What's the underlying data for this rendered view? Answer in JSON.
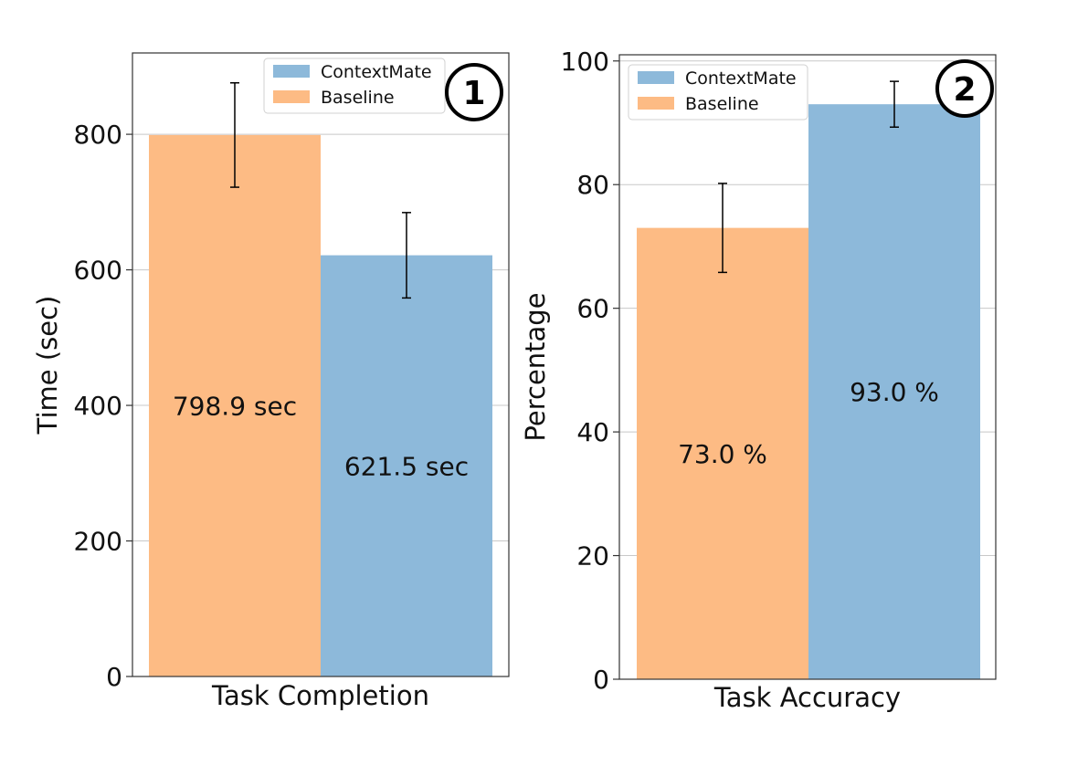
{
  "colors": {
    "contextmate": "#8db9da",
    "baseline": "#fdbb84",
    "grid": "#c8c8c8",
    "axis": "#333333",
    "text": "#111111"
  },
  "chart_data": [
    {
      "type": "bar",
      "panel_badge": "1",
      "xlabel": "Task Completion",
      "ylabel": "Time (sec)",
      "ylim": [
        0,
        920
      ],
      "yticks": [
        0,
        200,
        400,
        600,
        800
      ],
      "grid": true,
      "legend": {
        "position": "top-center",
        "entries": [
          "ContextMate",
          "Baseline"
        ]
      },
      "series": [
        {
          "name": "Baseline",
          "color_key": "baseline",
          "value": 798.9,
          "error": 77,
          "label": "798.9 sec"
        },
        {
          "name": "ContextMate",
          "color_key": "contextmate",
          "value": 621.5,
          "error": 63,
          "label": "621.5 sec"
        }
      ]
    },
    {
      "type": "bar",
      "panel_badge": "2",
      "xlabel": "Task Accuracy",
      "ylabel": "Percentage",
      "ylim": [
        0,
        101
      ],
      "yticks": [
        0,
        20,
        40,
        60,
        80,
        100
      ],
      "grid": true,
      "legend": {
        "position": "top-left",
        "entries": [
          "ContextMate",
          "Baseline"
        ]
      },
      "series": [
        {
          "name": "Baseline",
          "color_key": "baseline",
          "value": 73.0,
          "error": 7.2,
          "label": "73.0 %"
        },
        {
          "name": "ContextMate",
          "color_key": "contextmate",
          "value": 93.0,
          "error": 3.7,
          "label": "93.0 %"
        }
      ]
    }
  ]
}
